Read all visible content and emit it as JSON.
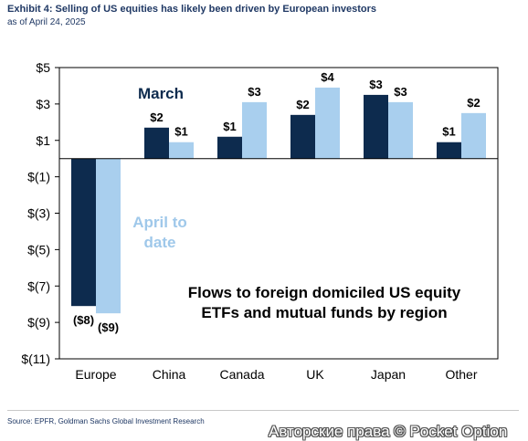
{
  "header": {
    "title": "Exhibit 4: Selling of US equities has likely been driven by European investors",
    "subtitle": "as of April 24, 2025"
  },
  "footer": {
    "source": "Source: EPFR, Goldman Sachs Global Investment Research",
    "watermark": "Авторские права © Pocket Option"
  },
  "colors": {
    "march": "#0d2b4e",
    "april": "#a9cfee",
    "april_label": "#9fc8ea",
    "text": "#0d2b4e"
  },
  "chart_data": {
    "type": "bar",
    "title": "Flows to foreign domiciled US equity ETFs and mutual funds by region",
    "title_lines": [
      "Flows to foreign domiciled US equity",
      "ETFs and mutual funds by region"
    ],
    "categories": [
      "Europe",
      "China",
      "Canada",
      "UK",
      "Japan",
      "Other"
    ],
    "series": [
      {
        "name": "March",
        "values": [
          -8.1,
          1.7,
          1.2,
          2.4,
          3.5,
          0.9
        ],
        "labels": [
          "($8)",
          "$2",
          "$1",
          "$2",
          "$3",
          "$1"
        ]
      },
      {
        "name": "April to date",
        "values": [
          -8.5,
          0.9,
          3.1,
          3.9,
          3.1,
          2.5
        ],
        "labels": [
          "($9)",
          "$1",
          "$3",
          "$4",
          "$3",
          "$2"
        ]
      }
    ],
    "legend_lines": {
      "March": [
        "March"
      ],
      "April to date": [
        "April to",
        "date"
      ]
    },
    "yticks": [
      5,
      3,
      1,
      -1,
      -3,
      -5,
      -7,
      -9,
      -11
    ],
    "ytick_labels": [
      "$5",
      "$3",
      "$1",
      "$(1)",
      "$(3)",
      "$(5)",
      "$(7)",
      "$(9)",
      "$(11)"
    ],
    "ylim": [
      -11,
      5
    ],
    "legend_placement": "inside",
    "grid": false
  }
}
